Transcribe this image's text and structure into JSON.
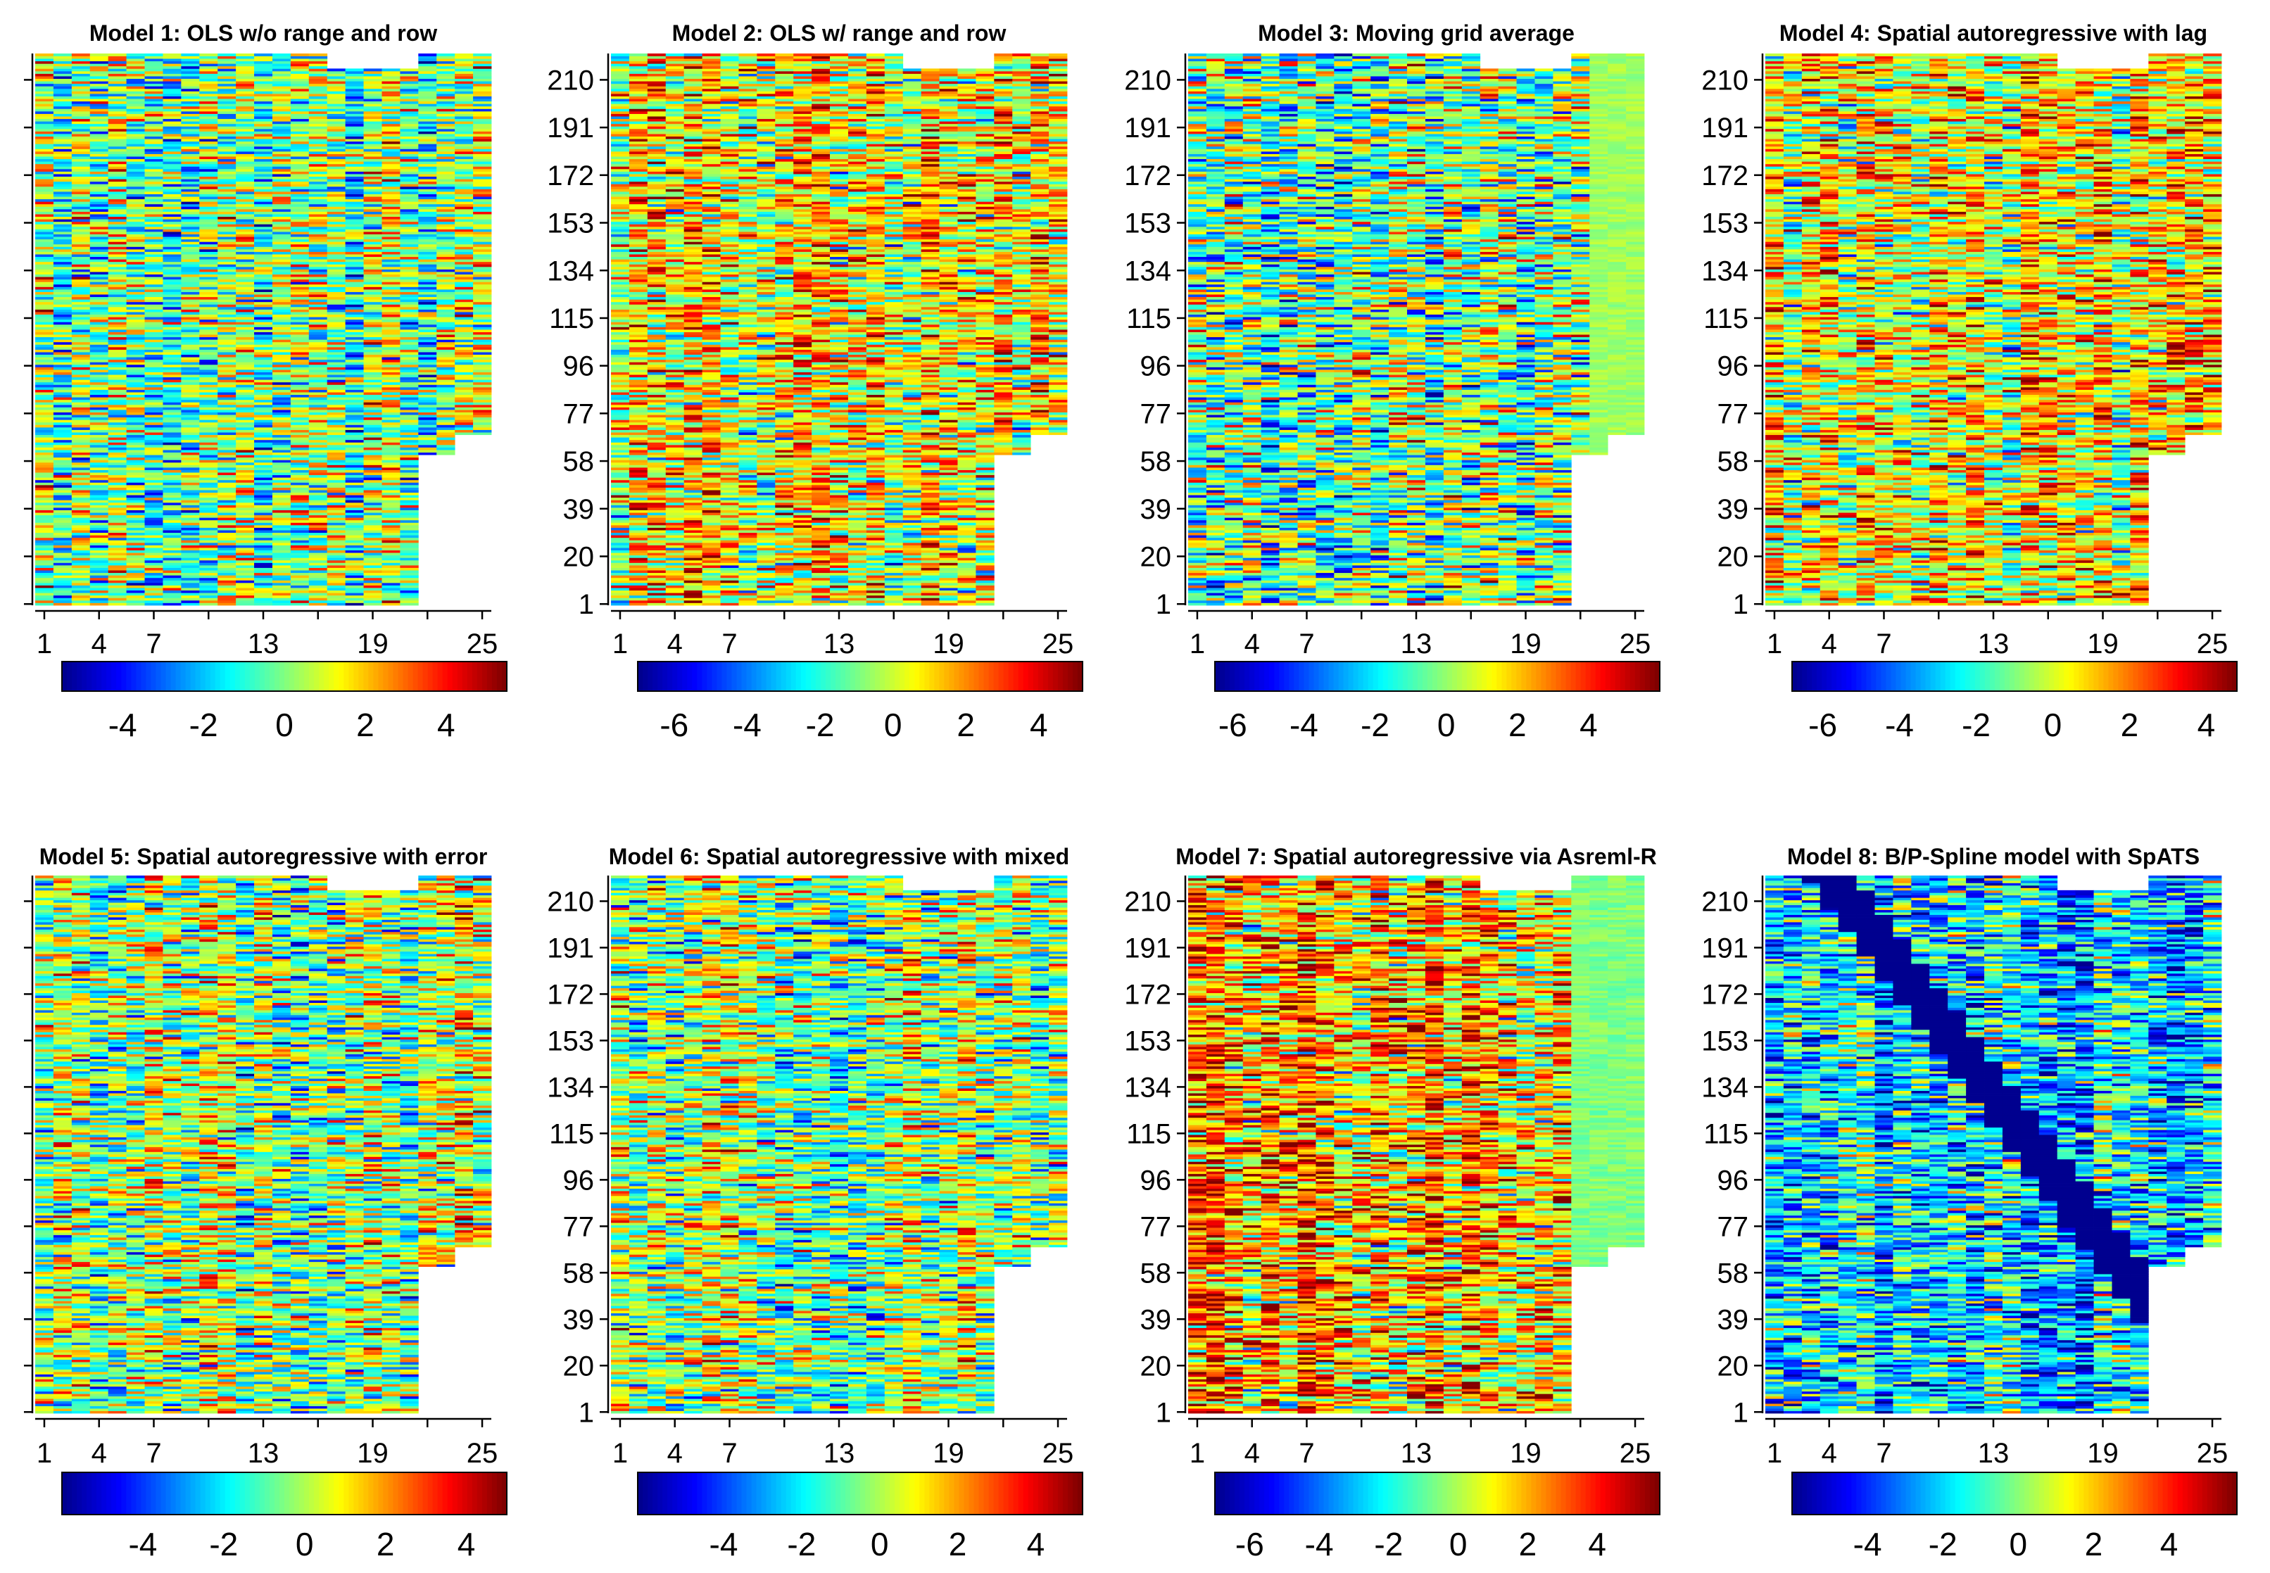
{
  "chart_data": [
    {
      "type": "heatmap",
      "title": "Model 1: OLS w/o range and row",
      "x_ticks": [
        "1",
        "4",
        "7",
        "13",
        "19",
        "25"
      ],
      "y_ticks": [],
      "colorbar": {
        "ticks": [
          "-4",
          "-2",
          "0",
          "2",
          "4"
        ],
        "range": [
          -5.5,
          5.5
        ]
      }
    },
    {
      "type": "heatmap",
      "title": "Model 2: OLS w/ range and row",
      "x_ticks": [
        "1",
        "4",
        "7",
        "13",
        "19",
        "25"
      ],
      "y_ticks": [
        "1",
        "20",
        "39",
        "58",
        "77",
        "96",
        "115",
        "134",
        "153",
        "172",
        "191",
        "210"
      ],
      "colorbar": {
        "ticks": [
          "-6",
          "-4",
          "-2",
          "0",
          "2",
          "4"
        ],
        "range": [
          -7,
          5.2
        ]
      }
    },
    {
      "type": "heatmap",
      "title": "Model 3: Moving grid average",
      "x_ticks": [
        "1",
        "4",
        "7",
        "13",
        "19",
        "25"
      ],
      "y_ticks": [
        "1",
        "20",
        "39",
        "58",
        "77",
        "96",
        "115",
        "134",
        "153",
        "172",
        "191",
        "210"
      ],
      "colorbar": {
        "ticks": [
          "-6",
          "-4",
          "-2",
          "0",
          "2",
          "4"
        ],
        "range": [
          -6.5,
          6
        ]
      }
    },
    {
      "type": "heatmap",
      "title": "Model 4: Spatial autoregressive with lag",
      "x_ticks": [
        "1",
        "4",
        "7",
        "13",
        "19",
        "25"
      ],
      "y_ticks": [
        "1",
        "20",
        "39",
        "58",
        "77",
        "96",
        "115",
        "134",
        "153",
        "172",
        "191",
        "210"
      ],
      "colorbar": {
        "ticks": [
          "-6",
          "-4",
          "-2",
          "0",
          "2",
          "4"
        ],
        "range": [
          -6.8,
          4.8
        ]
      }
    },
    {
      "type": "heatmap",
      "title": "Model 5: Spatial autoregressive with error",
      "x_ticks": [
        "1",
        "4",
        "7",
        "13",
        "19",
        "25"
      ],
      "y_ticks": [],
      "colorbar": {
        "ticks": [
          "-4",
          "-2",
          "0",
          "2",
          "4"
        ],
        "range": [
          -6,
          5
        ]
      }
    },
    {
      "type": "heatmap",
      "title": "Model 6: Spatial autoregressive with mixed",
      "x_ticks": [
        "1",
        "4",
        "7",
        "13",
        "19",
        "25"
      ],
      "y_ticks": [
        "1",
        "20",
        "39",
        "58",
        "77",
        "96",
        "115",
        "134",
        "153",
        "172",
        "191",
        "210"
      ],
      "colorbar": {
        "ticks": [
          "-4",
          "-2",
          "0",
          "2",
          "4"
        ],
        "range": [
          -6.2,
          5.2
        ]
      }
    },
    {
      "type": "heatmap",
      "title": "Model 7: Spatial autoregressive via Asreml-R",
      "x_ticks": [
        "1",
        "4",
        "7",
        "13",
        "19",
        "25"
      ],
      "y_ticks": [
        "1",
        "20",
        "39",
        "58",
        "77",
        "96",
        "115",
        "134",
        "153",
        "172",
        "191",
        "210"
      ],
      "colorbar": {
        "ticks": [
          "-6",
          "-4",
          "-2",
          "0",
          "2",
          "4"
        ],
        "range": [
          -7,
          5.8
        ]
      }
    },
    {
      "type": "heatmap",
      "title": "Model 8: B/P-Spline model with SpATS",
      "x_ticks": [
        "1",
        "4",
        "7",
        "13",
        "19",
        "25"
      ],
      "y_ticks": [
        "1",
        "20",
        "39",
        "58",
        "77",
        "96",
        "115",
        "134",
        "153",
        "172",
        "191",
        "210"
      ],
      "colorbar": {
        "ticks": [
          "-4",
          "-2",
          "0",
          "2",
          "4"
        ],
        "range": [
          -6,
          5.8
        ]
      }
    }
  ],
  "colormap": [
    "#00008f",
    "#0000ff",
    "#0080ff",
    "#00ffff",
    "#80ff80",
    "#ffff00",
    "#ff8000",
    "#ff0000",
    "#800000"
  ]
}
